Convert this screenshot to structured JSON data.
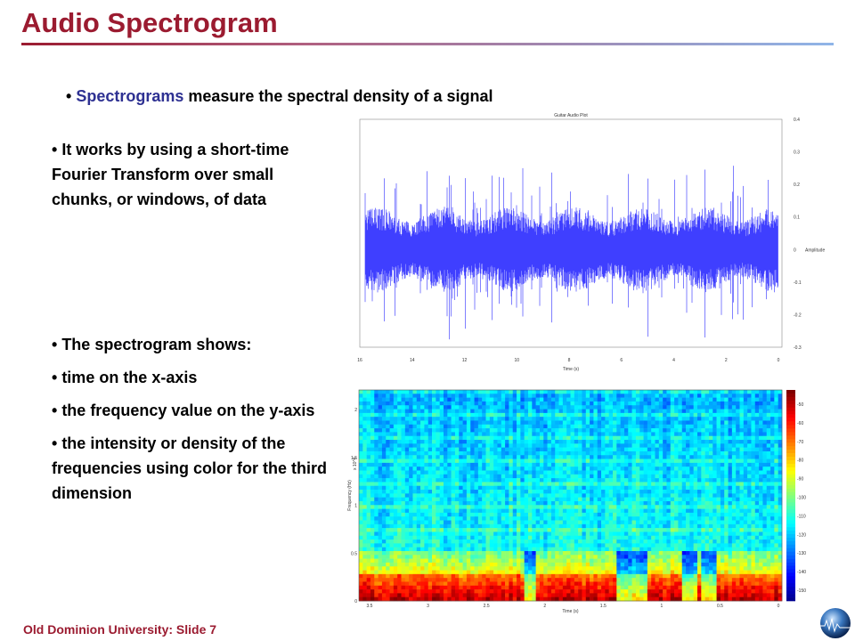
{
  "header": {
    "title": "Audio Spectrogram"
  },
  "intro": {
    "highlight": "Spectrograms",
    "rest": "measure the spectral density of a signal"
  },
  "bullets_top": [
    "It works by using a short-time Fourier Transform over small chunks, or windows, of data"
  ],
  "bullets_bottom": [
    "The spectrogram shows:",
    "time on the x-axis",
    "the frequency value on the y-axis",
    "the intensity or density of the frequencies using color for the third dimension"
  ],
  "footer": "Old Dominion University: Slide 7",
  "waveform": {
    "title": "Guitar Audio Plot",
    "xlabel": "Time (s)",
    "ylabel": "Amplitude",
    "xticks": [
      "16",
      "14",
      "12",
      "10",
      "8",
      "6",
      "4",
      "2",
      "0"
    ],
    "yticks": [
      "0.4",
      "0.3",
      "0.2",
      "0.1",
      "0",
      "-0.1",
      "-0.2",
      "-0.3"
    ]
  },
  "spectrogram": {
    "xlabel": "Time (s)",
    "ylabel": "Frequency (Hz)",
    "yexp": "x 10^4",
    "xticks": [
      "3.5",
      "3",
      "2.5",
      "2",
      "1.5",
      "1",
      "0.5",
      "0"
    ],
    "yticks": [
      "2",
      "1.5",
      "1",
      "0.5",
      "0"
    ],
    "cbticks": [
      "-50",
      "-60",
      "-70",
      "-80",
      "-90",
      "-100",
      "-110",
      "-120",
      "-130",
      "-140",
      "-150"
    ]
  }
}
